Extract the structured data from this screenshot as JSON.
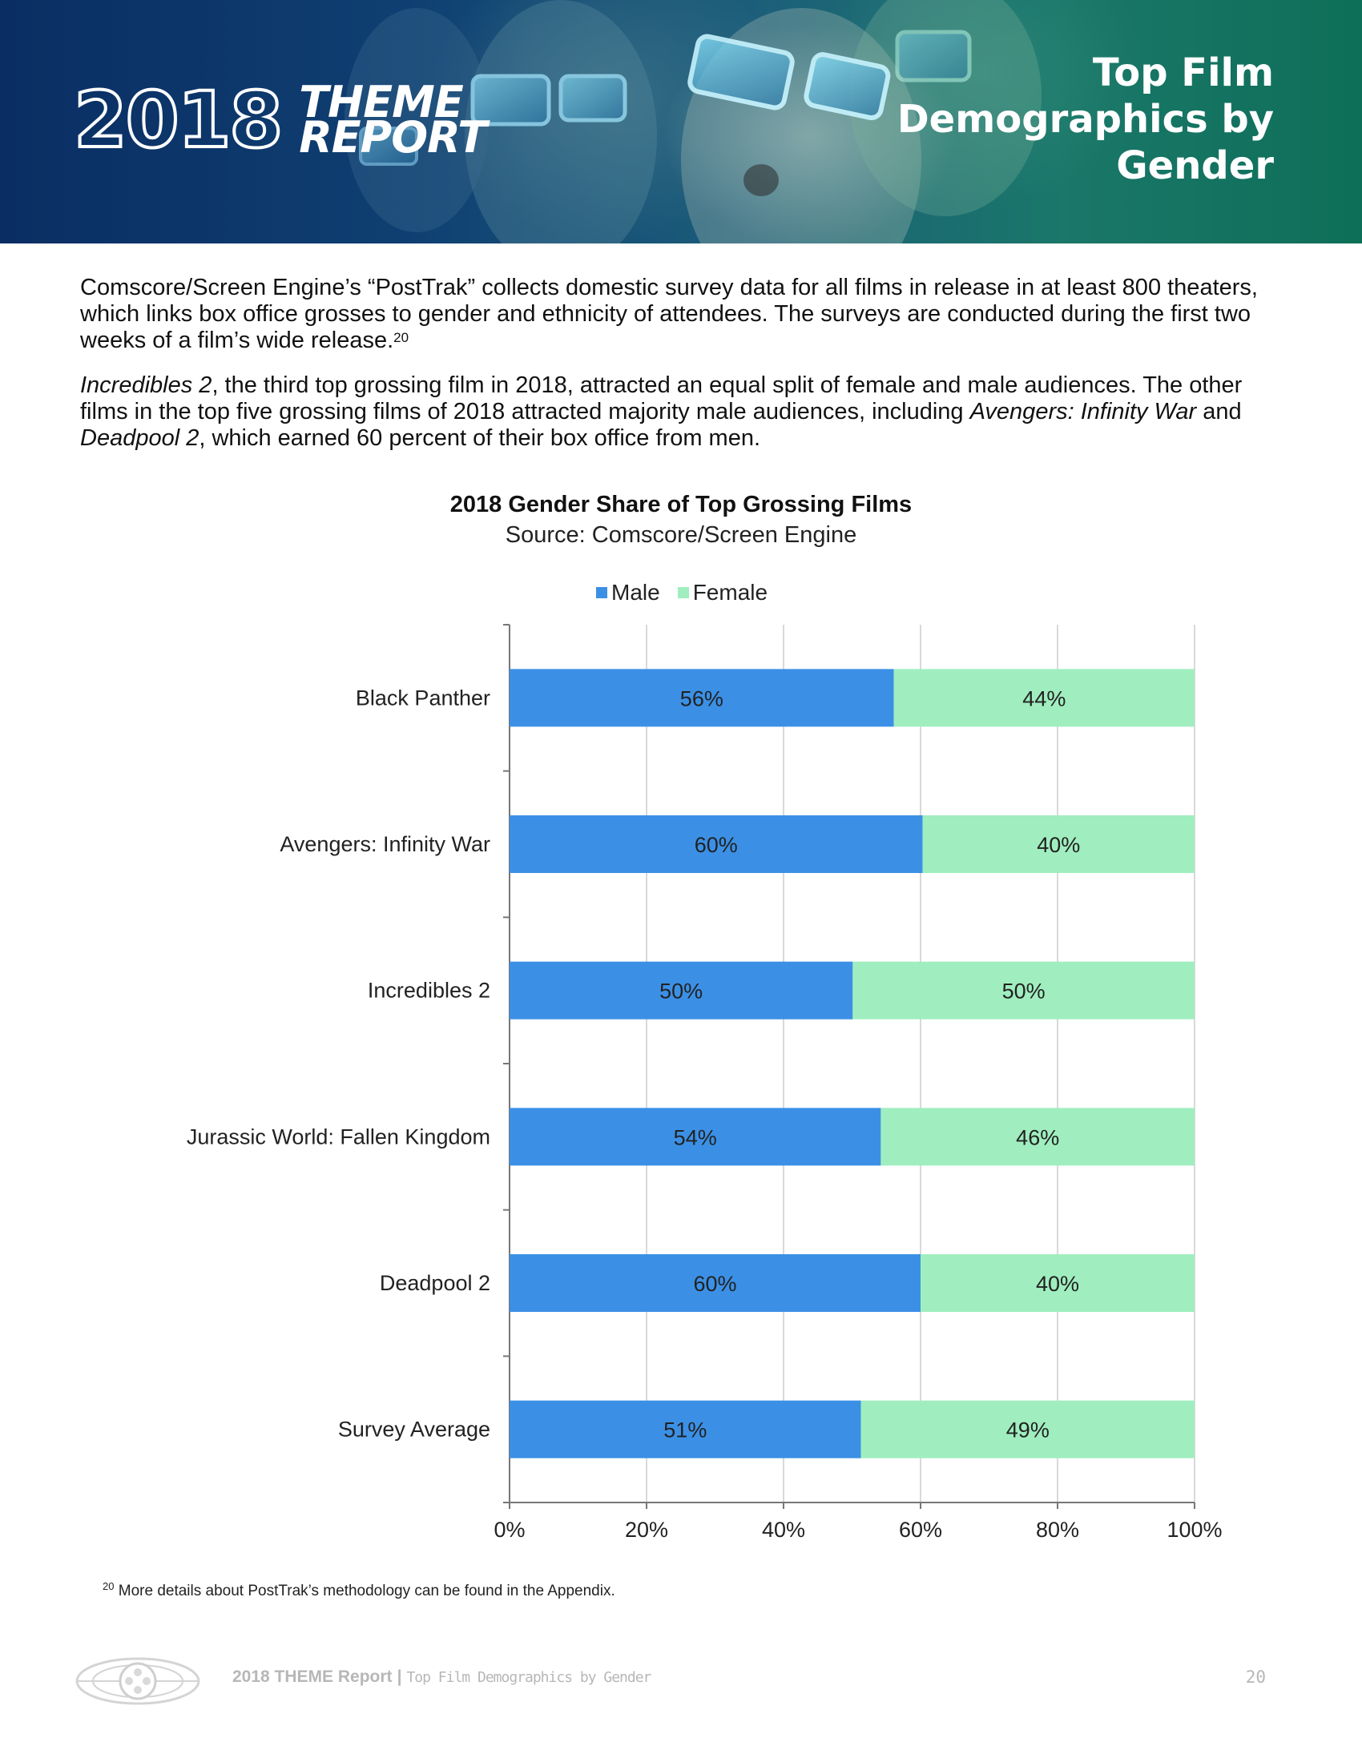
{
  "header": {
    "logo_year": "2018",
    "logo_word1": "THEME",
    "logo_word2": "REPORT",
    "title_lines": [
      "Top Film",
      "Demographics by",
      "Gender"
    ]
  },
  "body": {
    "p1": "Comscore/Screen Engine’s “PostTrak” collects domestic survey data for all films in release in at least 800 theaters, which links box office grosses to gender and ethnicity of attendees. The surveys are conducted during the first two weeks of a film’s wide release.",
    "p1_sup": "20",
    "p2_title": "Incredibles 2",
    "p2_a": ", the third top grossing film in 2018, attracted an equal split of female and male audiences. The other films in the top five grossing films of 2018 attracted majority male audiences, including ",
    "p2_film1": "Avengers: Infinity War",
    "p2_b": " and ",
    "p2_film2": "Deadpool 2",
    "p2_c": ", which earned 60 percent of their box office from men."
  },
  "chart_data": {
    "type": "bar",
    "orientation": "horizontal",
    "stacked": true,
    "title": "2018 Gender Share of Top Grossing Films",
    "subtitle": "Source: Comscore/Screen Engine",
    "categories": [
      "Black Panther",
      "Avengers: Infinity War",
      "Incredibles 2",
      "Jurassic World: Fallen Kingdom",
      "Deadpool 2",
      "Survey Average"
    ],
    "series": [
      {
        "name": "Male",
        "color": "#3b90e6",
        "values": [
          56,
          60,
          50,
          54,
          60,
          51
        ],
        "display_values": [
          56.1,
          60.3,
          50.1,
          54.2,
          60.0,
          51.3
        ]
      },
      {
        "name": "Female",
        "color": "#a0eebf",
        "values": [
          44,
          40,
          50,
          46,
          40,
          49
        ]
      }
    ],
    "xlim": [
      0,
      100
    ],
    "xticks": [
      "0%",
      "20%",
      "40%",
      "60%",
      "80%",
      "100%"
    ],
    "grid": true,
    "legend": "top"
  },
  "footnote": {
    "num": "20",
    "text": " More details about PostTrak’s methodology can be found in the Appendix."
  },
  "footer": {
    "report": "2018 THEME Report",
    "separator": "|",
    "section": "Top Film Demographics by Gender",
    "page": "20"
  }
}
